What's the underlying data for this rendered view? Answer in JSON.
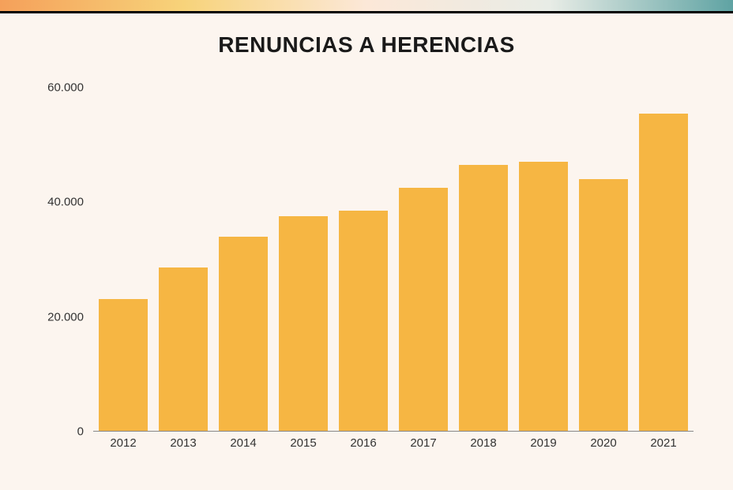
{
  "chart": {
    "type": "bar",
    "title": "RENUNCIAS A HERENCIAS",
    "title_fontsize": 28,
    "title_fontweight": 800,
    "title_color": "#1a1a1a",
    "gradient_bar": {
      "height": 14,
      "colors": [
        "#f5a05a",
        "#f7d37a",
        "#fce8d8",
        "#e8ece6",
        "#5fa3a3"
      ]
    },
    "divider_color": "#000000",
    "background_color": "#fcf5ef",
    "categories": [
      "2012",
      "2013",
      "2014",
      "2015",
      "2016",
      "2017",
      "2018",
      "2019",
      "2020",
      "2021"
    ],
    "values": [
      23000,
      28500,
      34000,
      37500,
      38500,
      42500,
      46500,
      47000,
      44000,
      55500
    ],
    "bar_color": "#f6b643",
    "bar_width": 0.82,
    "ylim": [
      0,
      60000
    ],
    "yticks": [
      0,
      20000,
      40000,
      60000
    ],
    "ytick_labels": [
      "0",
      "20.000",
      "40.000",
      "60.000"
    ],
    "axis_font_color": "#333333",
    "axis_fontsize": 15,
    "axis_line_color": "#888888",
    "grid": false
  }
}
